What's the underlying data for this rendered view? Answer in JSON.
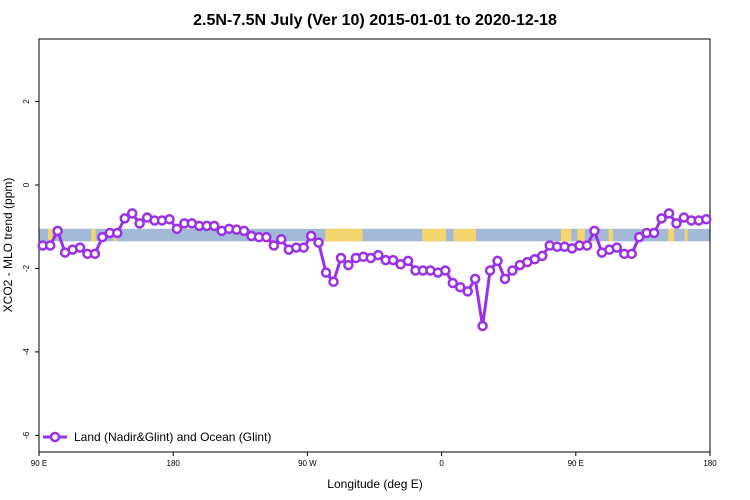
{
  "chart_data": {
    "type": "line",
    "title": "2.5N-7.5N July (Ver 10)   2015-01-01 to 2020-12-18",
    "xlabel": "Longitude (deg E)",
    "ylabel": "XCO2 - MLO trend (ppm)",
    "xlim": [
      90,
      540
    ],
    "ylim": [
      -6.4,
      3.5
    ],
    "x_ticks": [
      {
        "value": 90,
        "label": "90 E"
      },
      {
        "value": 180,
        "label": "180"
      },
      {
        "value": 270,
        "label": "90 W"
      },
      {
        "value": 360,
        "label": "0"
      },
      {
        "value": 450,
        "label": "90 E"
      },
      {
        "value": 540,
        "label": "180"
      }
    ],
    "y_ticks": [
      {
        "value": -6,
        "label": "-6"
      },
      {
        "value": -4,
        "label": "-4"
      },
      {
        "value": -2,
        "label": "-2"
      },
      {
        "value": 0,
        "label": "0"
      },
      {
        "value": 2,
        "label": "2"
      }
    ],
    "legend": {
      "position": "bottom-left",
      "label": "Land (Nadir&Glint) and Ocean (Glint)"
    },
    "colors": {
      "series": "#9b30e8",
      "ocean": "#a3b9d8",
      "land": "#f5d56e"
    },
    "band": {
      "y_top": -1.05,
      "y_bottom": -1.35
    },
    "land_x": [
      [
        96,
        99
      ],
      [
        125,
        128
      ],
      [
        140,
        142
      ],
      [
        282,
        307
      ],
      [
        347,
        363
      ],
      [
        368,
        383
      ],
      [
        440,
        447
      ],
      [
        451,
        456
      ],
      [
        472,
        475
      ],
      [
        512,
        516
      ],
      [
        523,
        525
      ]
    ],
    "series": [
      {
        "name": "Land (Nadir&Glint) and Ocean (Glint)",
        "x": [
          92.5,
          97.5,
          102.5,
          107.5,
          112.5,
          117.5,
          122.5,
          127.5,
          132.5,
          137.5,
          142.5,
          147.5,
          152.5,
          157.5,
          162.5,
          167.5,
          172.5,
          177.5,
          182.5,
          187.5,
          192.5,
          197.5,
          202.5,
          207.5,
          212.5,
          217.5,
          222.5,
          227.5,
          232.5,
          237.5,
          242.5,
          247.5,
          252.5,
          257.5,
          262.5,
          267.5,
          272.5,
          277.5,
          282.5,
          287.5,
          292.5,
          297.5,
          302.5,
          307.5,
          312.5,
          317.5,
          322.5,
          327.5,
          332.5,
          337.5,
          342.5,
          347.5,
          352.5,
          357.5,
          362.5,
          367.5,
          372.5,
          377.5,
          382.5,
          387.5,
          392.5,
          397.5,
          402.5,
          407.5,
          412.5,
          417.5,
          422.5,
          427.5,
          432.5,
          437.5,
          442.5,
          447.5,
          452.5,
          457.5,
          462.5,
          467.5,
          472.5,
          477.5,
          482.5,
          487.5,
          492.5,
          497.5,
          502.5,
          507.5,
          512.5,
          517.5,
          522.5,
          527.5,
          532.5,
          537.5
        ],
        "values": [
          -1.45,
          -1.45,
          -1.1,
          -1.62,
          -1.55,
          -1.5,
          -1.65,
          -1.65,
          -1.25,
          -1.15,
          -1.15,
          -0.8,
          -0.68,
          -0.92,
          -0.78,
          -0.85,
          -0.85,
          -0.82,
          -1.05,
          -0.92,
          -0.92,
          -0.98,
          -0.98,
          -0.98,
          -1.1,
          -1.05,
          -1.07,
          -1.1,
          -1.22,
          -1.25,
          -1.25,
          -1.45,
          -1.3,
          -1.55,
          -1.5,
          -1.5,
          -1.22,
          -1.38,
          -2.1,
          -2.32,
          -1.75,
          -1.92,
          -1.75,
          -1.72,
          -1.75,
          -1.68,
          -1.8,
          -1.8,
          -1.9,
          -1.82,
          -2.05,
          -2.05,
          -2.05,
          -2.1,
          -2.05,
          -2.35,
          -2.45,
          -2.55,
          -2.25,
          -3.38,
          -2.05,
          -1.82,
          -2.25,
          -2.05,
          -1.92,
          -1.85,
          -1.78,
          -1.7,
          -1.45,
          -1.48,
          -1.48,
          -1.52,
          -1.45,
          -1.45,
          -1.1,
          -1.62,
          -1.55,
          -1.5,
          -1.65,
          -1.65,
          -1.25,
          -1.15,
          -1.15,
          -0.8,
          -0.68,
          -0.92,
          -0.78,
          -0.85,
          -0.85,
          -0.82
        ]
      }
    ]
  }
}
